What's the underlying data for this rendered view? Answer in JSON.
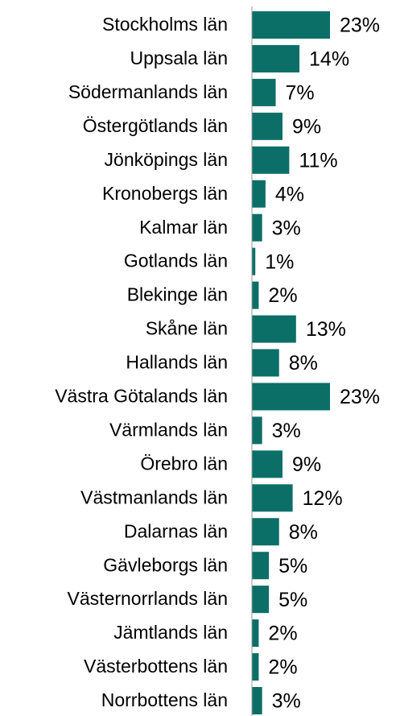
{
  "chart_data": {
    "type": "bar",
    "orientation": "horizontal",
    "color": "#0b6f67",
    "categories": [
      "Stockholms län",
      "Uppsala län",
      "Södermanlands län",
      "Östergötlands län",
      "Jönköpings län",
      "Kronobergs län",
      "Kalmar län",
      "Gotlands län",
      "Blekinge län",
      "Skåne län",
      "Hallands län",
      "Västra Götalands län",
      "Värmlands län",
      "Örebro län",
      "Västmanlands län",
      "Dalarnas län",
      "Gävleborgs län",
      "Västernorrlands län",
      "Jämtlands län",
      "Västerbottens län",
      "Norrbottens län"
    ],
    "values": [
      23,
      14,
      7,
      9,
      11,
      4,
      3,
      1,
      2,
      13,
      8,
      23,
      3,
      9,
      12,
      8,
      5,
      5,
      2,
      2,
      3
    ],
    "value_labels": [
      "23%",
      "14%",
      "7%",
      "9%",
      "11%",
      "4%",
      "3%",
      "1%",
      "2%",
      "13%",
      "8%",
      "23%",
      "3%",
      "9%",
      "12%",
      "8%",
      "5%",
      "5%",
      "2%",
      "2%",
      "3%"
    ]
  }
}
